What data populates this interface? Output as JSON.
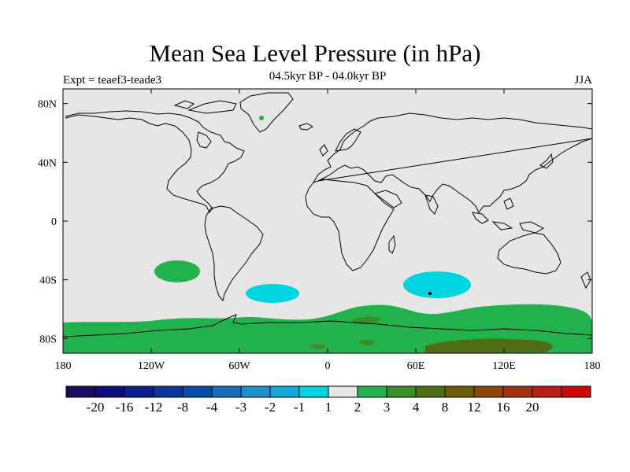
{
  "header": {
    "title": "Mean Sea Level Pressure (in hPa)",
    "subtitle": "04.5kyr BP - 04.0kyr BP",
    "experiment": "Expt = teaef3-teade3",
    "season": "JJA"
  },
  "map": {
    "x_ticks": [
      "180",
      "120W",
      "60W",
      "0",
      "60E",
      "120E",
      "180"
    ],
    "y_ticks": [
      "80N",
      "40N",
      "0",
      "40S",
      "80S"
    ],
    "land_color": "#e6e6e6",
    "coast_color": "#000000"
  },
  "colorbar": {
    "colors": [
      "#1a0a5e",
      "#0d0d78",
      "#0a1f8c",
      "#0c3599",
      "#0a4ea8",
      "#1a6eb8",
      "#1f8fc8",
      "#14a6d4",
      "#00d4e0",
      "#e6e6e6",
      "#22b14c",
      "#3c8c28",
      "#4f6e14",
      "#6e5a0a",
      "#8c460a",
      "#a03214",
      "#b41e14",
      "#c80a0a"
    ],
    "labels": [
      "-20",
      "-16",
      "-12",
      "-8",
      "-4",
      "-3",
      "-2",
      "-1",
      "1",
      "2",
      "3",
      "4",
      "8",
      "12",
      "16",
      "20"
    ]
  },
  "regions": {
    "positive_color": "#22b14c",
    "strong_positive_color": "#3c8c28",
    "stronger_positive_color": "#4f6e14",
    "negative_color": "#00d4e0"
  }
}
